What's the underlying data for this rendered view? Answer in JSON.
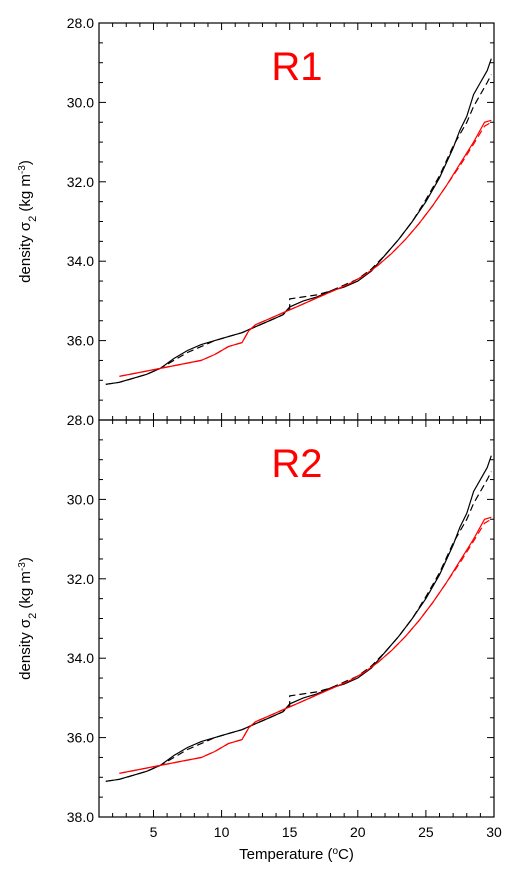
{
  "chart_data": [
    {
      "type": "line",
      "title": "R1",
      "title_color": "#ff0000",
      "ylabel": "density σ2 (kg m-3)",
      "xlabel": "",
      "xlim": [
        1,
        30
      ],
      "ylim": [
        28.0,
        38.0
      ],
      "y_inverted": true,
      "xticks": [
        5,
        10,
        15,
        20,
        25,
        30
      ],
      "yticks": [
        {
          "v": 28.0,
          "label": "28.0"
        },
        {
          "v": 30.0,
          "label": "30.0"
        },
        {
          "v": 32.0,
          "label": "32.0"
        },
        {
          "v": 34.0,
          "label": "34.0"
        },
        {
          "v": 36.0,
          "label": "36.0"
        },
        {
          "v": 38.0,
          "label": "38.0"
        }
      ],
      "show_x_tick_labels": false,
      "show_bottom_y_label": false,
      "series": [
        {
          "color": "#000000",
          "dash": "solid",
          "x": [
            1.5,
            2.5,
            3.5,
            4.5,
            5.5,
            6.5,
            7.5,
            8.5,
            9.5,
            10.5,
            11.5,
            12.5,
            13.5,
            14.5,
            15.0,
            16.0,
            17.0,
            18.0,
            19.0,
            20.0,
            21.0,
            22.0,
            23.0,
            24.0,
            25.0,
            26.0,
            27.0,
            27.5,
            28.0,
            28.5,
            29.0,
            29.5,
            29.8
          ],
          "y": [
            37.1,
            37.05,
            36.95,
            36.85,
            36.7,
            36.45,
            36.25,
            36.1,
            36.0,
            35.9,
            35.8,
            35.65,
            35.5,
            35.35,
            35.15,
            35.0,
            34.9,
            34.75,
            34.65,
            34.5,
            34.25,
            33.85,
            33.45,
            33.0,
            32.5,
            31.9,
            31.15,
            30.7,
            30.35,
            29.8,
            29.5,
            29.2,
            28.9
          ]
        },
        {
          "color": "#000000",
          "dash": "dashed",
          "x": [
            1.5,
            2.5,
            3.5,
            4.5,
            5.5,
            6.5,
            7.5,
            8.5,
            9.5,
            10.5,
            11.5,
            12.5,
            13.5,
            14.5,
            15.0,
            15.0,
            16.0,
            17.0,
            18.0,
            19.0,
            20.0,
            21.0,
            22.0,
            23.0,
            24.0,
            25.0,
            26.0,
            27.0,
            27.5,
            28.0,
            28.5,
            29.0,
            29.5,
            29.8
          ],
          "y": [
            37.1,
            37.05,
            36.95,
            36.85,
            36.7,
            36.5,
            36.3,
            36.15,
            36.0,
            35.9,
            35.8,
            35.65,
            35.5,
            35.35,
            35.2,
            34.95,
            34.9,
            34.85,
            34.75,
            34.6,
            34.45,
            34.2,
            33.85,
            33.45,
            33.0,
            32.45,
            31.85,
            31.1,
            30.8,
            30.5,
            30.1,
            29.8,
            29.5,
            29.3
          ]
        },
        {
          "color": "#ff0000",
          "dash": "solid",
          "x": [
            2.5,
            4.0,
            5.5,
            7.0,
            8.5,
            9.5,
            10.5,
            11.5,
            12.0,
            12.5,
            13.5,
            14.5,
            15.5,
            16.5,
            17.5,
            18.5,
            19.5,
            20.5,
            21.5,
            22.5,
            23.5,
            24.5,
            25.5,
            26.5,
            27.5,
            28.5,
            29.3,
            29.8
          ],
          "y": [
            36.9,
            36.8,
            36.7,
            36.6,
            36.5,
            36.35,
            36.15,
            36.05,
            35.75,
            35.6,
            35.45,
            35.3,
            35.15,
            35.0,
            34.85,
            34.7,
            34.55,
            34.35,
            34.1,
            33.8,
            33.45,
            33.05,
            32.6,
            32.1,
            31.55,
            31.0,
            30.5,
            30.45
          ]
        },
        {
          "color": "#ff0000",
          "dash": "dashed",
          "x": [
            2.5,
            4.0,
            5.5,
            7.0,
            8.5,
            9.5,
            10.5,
            11.5,
            12.0,
            12.5,
            13.5,
            14.5,
            15.5,
            16.5,
            17.5,
            18.5,
            19.5,
            20.5,
            21.5,
            22.5,
            23.5,
            24.5,
            25.5,
            26.5,
            27.5,
            28.5,
            29.3,
            29.8
          ],
          "y": [
            36.9,
            36.8,
            36.7,
            36.6,
            36.5,
            36.35,
            36.15,
            36.05,
            35.75,
            35.6,
            35.45,
            35.3,
            35.15,
            35.0,
            34.85,
            34.7,
            34.55,
            34.35,
            34.1,
            33.8,
            33.45,
            33.05,
            32.6,
            32.1,
            31.6,
            31.05,
            30.6,
            30.5
          ]
        }
      ]
    },
    {
      "type": "line",
      "title": "R2",
      "title_color": "#ff0000",
      "ylabel": "density σ2 (kg m-3)",
      "xlabel": "Temperature (oC)",
      "xlim": [
        1,
        30
      ],
      "ylim": [
        28.0,
        38.0
      ],
      "y_inverted": true,
      "xticks": [
        5,
        10,
        15,
        20,
        25,
        30
      ],
      "yticks": [
        {
          "v": 28.0,
          "label": "28.0"
        },
        {
          "v": 30.0,
          "label": "30.0"
        },
        {
          "v": 32.0,
          "label": "32.0"
        },
        {
          "v": 34.0,
          "label": "34.0"
        },
        {
          "v": 36.0,
          "label": "36.0"
        },
        {
          "v": 38.0,
          "label": "38.0"
        }
      ],
      "show_x_tick_labels": true,
      "show_bottom_y_label": true,
      "series": [
        {
          "color": "#000000",
          "dash": "solid",
          "x": [
            1.5,
            2.5,
            3.5,
            4.5,
            5.5,
            6.5,
            7.5,
            8.5,
            9.5,
            10.5,
            11.5,
            12.5,
            13.5,
            14.5,
            15.0,
            16.0,
            17.0,
            18.0,
            19.0,
            20.0,
            21.0,
            22.0,
            23.0,
            24.0,
            25.0,
            26.0,
            27.0,
            27.5,
            28.0,
            28.5,
            29.0,
            29.5,
            29.8
          ],
          "y": [
            37.1,
            37.05,
            36.95,
            36.85,
            36.7,
            36.45,
            36.25,
            36.1,
            36.0,
            35.9,
            35.8,
            35.65,
            35.5,
            35.35,
            35.15,
            35.0,
            34.9,
            34.75,
            34.65,
            34.5,
            34.25,
            33.85,
            33.45,
            33.0,
            32.5,
            31.9,
            31.15,
            30.7,
            30.35,
            29.8,
            29.5,
            29.2,
            28.9
          ]
        },
        {
          "color": "#000000",
          "dash": "dashed",
          "x": [
            1.5,
            2.5,
            3.5,
            4.5,
            5.5,
            6.5,
            7.5,
            8.5,
            9.5,
            10.5,
            11.5,
            12.5,
            13.5,
            14.5,
            15.0,
            15.0,
            16.0,
            17.0,
            18.0,
            19.0,
            20.0,
            21.0,
            22.0,
            23.0,
            24.0,
            25.0,
            26.0,
            27.0,
            27.5,
            28.0,
            28.5,
            29.0,
            29.5,
            29.8
          ],
          "y": [
            37.1,
            37.05,
            36.95,
            36.85,
            36.7,
            36.5,
            36.3,
            36.15,
            36.0,
            35.9,
            35.8,
            35.65,
            35.5,
            35.35,
            35.2,
            34.95,
            34.9,
            34.85,
            34.75,
            34.6,
            34.45,
            34.2,
            33.85,
            33.45,
            33.0,
            32.45,
            31.85,
            31.1,
            30.8,
            30.5,
            30.1,
            29.8,
            29.5,
            29.3
          ]
        },
        {
          "color": "#ff0000",
          "dash": "solid",
          "x": [
            2.5,
            4.0,
            5.5,
            7.0,
            8.5,
            9.5,
            10.5,
            11.5,
            12.0,
            12.5,
            13.5,
            14.5,
            15.5,
            16.5,
            17.5,
            18.5,
            19.5,
            20.5,
            21.5,
            22.5,
            23.5,
            24.5,
            25.5,
            26.5,
            27.5,
            28.5,
            29.3,
            29.8
          ],
          "y": [
            36.9,
            36.8,
            36.7,
            36.6,
            36.5,
            36.35,
            36.15,
            36.05,
            35.75,
            35.6,
            35.45,
            35.3,
            35.15,
            35.0,
            34.85,
            34.7,
            34.55,
            34.35,
            34.1,
            33.8,
            33.45,
            33.05,
            32.6,
            32.1,
            31.55,
            31.0,
            30.5,
            30.45
          ]
        },
        {
          "color": "#ff0000",
          "dash": "dashed",
          "x": [
            2.5,
            4.0,
            5.5,
            7.0,
            8.5,
            9.5,
            10.5,
            11.5,
            12.0,
            12.5,
            13.5,
            14.5,
            15.5,
            16.5,
            17.5,
            18.5,
            19.5,
            20.5,
            21.5,
            22.5,
            23.5,
            24.5,
            25.5,
            26.5,
            27.5,
            28.5,
            29.3,
            29.8
          ],
          "y": [
            36.9,
            36.8,
            36.7,
            36.6,
            36.5,
            36.35,
            36.15,
            36.05,
            35.75,
            35.6,
            35.45,
            35.3,
            35.15,
            35.0,
            34.85,
            34.7,
            34.55,
            34.35,
            34.1,
            33.8,
            33.45,
            33.05,
            32.6,
            32.1,
            31.6,
            31.05,
            30.6,
            30.5
          ]
        }
      ]
    }
  ]
}
